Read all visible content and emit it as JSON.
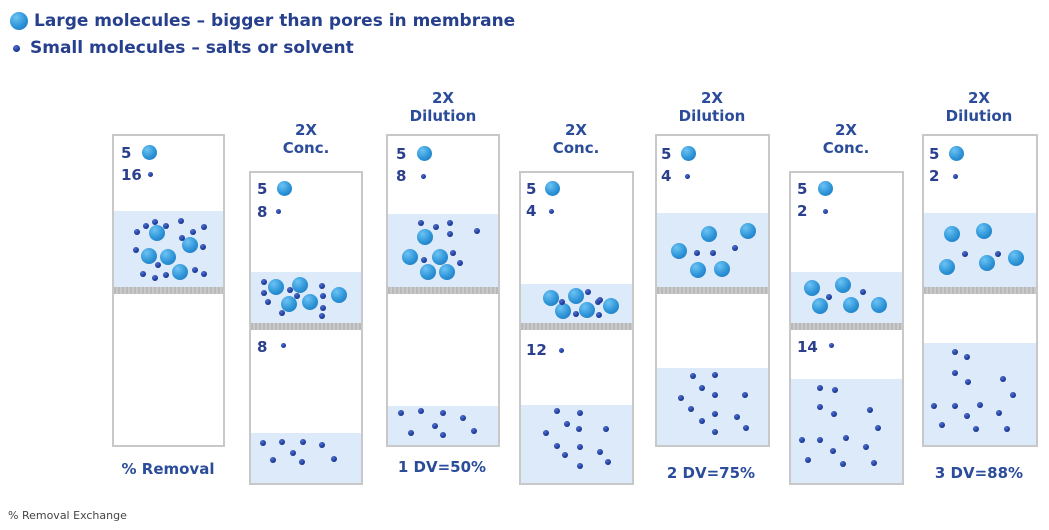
{
  "legend": {
    "large": "Large molecules – bigger than pores in membrane",
    "small": "Small molecules – salts or solvent"
  },
  "columns": [
    {
      "header": [
        "",
        ""
      ],
      "top_large": "5",
      "top_small": "16",
      "bottom_small": "",
      "footer": "% Removal"
    },
    {
      "header": [
        "2X",
        "Conc."
      ],
      "top_large": "5",
      "top_small": "8",
      "bottom_small": "8",
      "footer": ""
    },
    {
      "header": [
        "2X",
        "Dilution"
      ],
      "top_large": "5",
      "top_small": "8",
      "bottom_small": "",
      "footer": "1 DV=50%"
    },
    {
      "header": [
        "2X",
        "Conc."
      ],
      "top_large": "5",
      "top_small": "4",
      "bottom_small": "12",
      "footer": ""
    },
    {
      "header": [
        "2X",
        "Dilution"
      ],
      "top_large": "5",
      "top_small": "4",
      "bottom_small": "",
      "footer": "2 DV=75%"
    },
    {
      "header": [
        "2X",
        "Conc."
      ],
      "top_large": "5",
      "top_small": "2",
      "bottom_small": "14",
      "footer": ""
    },
    {
      "header": [
        "2X",
        "Dilution"
      ],
      "top_large": "5",
      "top_small": "2",
      "bottom_small": "",
      "footer": "3 DV=88%"
    }
  ],
  "caption": "% Removal Exchange",
  "colors": {
    "text": "#2b3f8c",
    "fill": "#dceafa",
    "membrane": "#c0c0c0",
    "large": "#2d94d8",
    "small": "#1d3b99"
  }
}
